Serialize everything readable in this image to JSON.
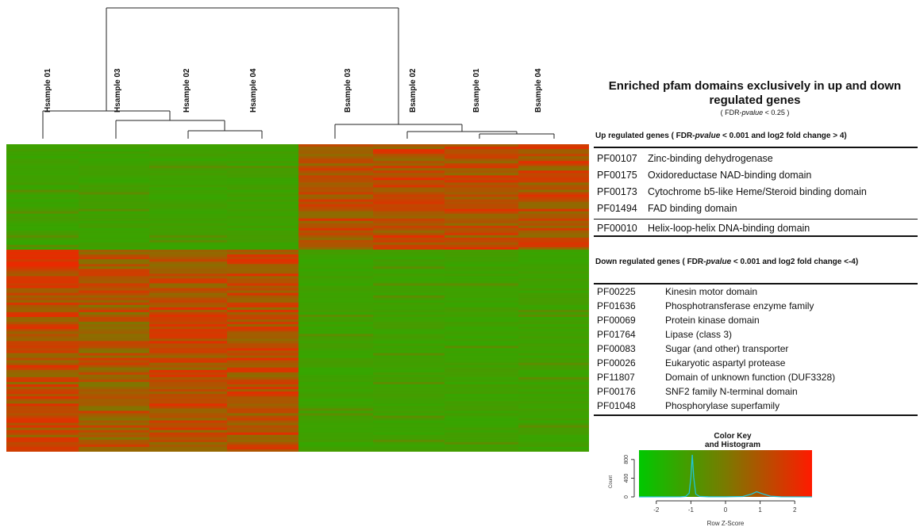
{
  "chart_data": {
    "type": "heatmap",
    "columns": [
      "Hsample 01",
      "Hsample 03",
      "Hsample 02",
      "Hsample 04",
      "Bsample 03",
      "Bsample 02",
      "Bsample 01",
      "Bsample 04"
    ],
    "row_clusters": [
      {
        "pattern": [
          -1,
          -1,
          -1,
          -1,
          1,
          1,
          1,
          1
        ]
      },
      {
        "pattern": [
          1,
          1,
          1,
          1,
          -1,
          -1,
          -1,
          -1
        ]
      }
    ],
    "color_scale": {
      "low": "#00c800",
      "mid": "#7a7a00",
      "high": "#ff1a00"
    },
    "color_key": {
      "title": "Color Key\nand Histogram",
      "xlabel": "Row Z-Score",
      "ylabel": "Count",
      "xlim": [
        -2.5,
        2.5
      ],
      "ylim": [
        0,
        1000
      ],
      "xticks": [
        "-2",
        "-1",
        "0",
        "1",
        "2"
      ],
      "yticks": [
        "0",
        "400",
        "800"
      ],
      "histogram": [
        {
          "z": -2.5,
          "count": 0
        },
        {
          "z": -1.3,
          "count": 2
        },
        {
          "z": -1.15,
          "count": 10
        },
        {
          "z": -1.05,
          "count": 80
        },
        {
          "z": -1.0,
          "count": 420
        },
        {
          "z": -0.96,
          "count": 900
        },
        {
          "z": -0.92,
          "count": 420
        },
        {
          "z": -0.86,
          "count": 60
        },
        {
          "z": -0.75,
          "count": 10
        },
        {
          "z": -0.5,
          "count": 3
        },
        {
          "z": 0.0,
          "count": 2
        },
        {
          "z": 0.5,
          "count": 8
        },
        {
          "z": 0.75,
          "count": 60
        },
        {
          "z": 0.9,
          "count": 110
        },
        {
          "z": 1.05,
          "count": 70
        },
        {
          "z": 1.3,
          "count": 15
        },
        {
          "z": 1.6,
          "count": 2
        },
        {
          "z": 2.5,
          "count": 0
        }
      ]
    }
  },
  "panel": {
    "title": "Enriched pfam domains exclusively in up and down regulated genes",
    "subtitle_pre": "( FDR-",
    "subtitle_italic": "pvalue",
    "subtitle_post": " < 0.25 )",
    "up": {
      "head_pre": "Up regulated genes ( FDR-",
      "head_italic": "pvalue",
      "head_post": " < 0.001 and log2 fold change > 4)",
      "rows": [
        {
          "code": "PF00107",
          "desc": "Zinc-binding dehydrogenase"
        },
        {
          "code": "PF00175",
          "desc": "Oxidoreductase NAD-binding domain"
        },
        {
          "code": "PF00173",
          "desc": "Cytochrome b5-like Heme/Steroid binding domain"
        },
        {
          "code": "PF01494",
          "desc": "FAD binding domain"
        },
        {
          "code": "PF00010",
          "desc": "Helix-loop-helix DNA-binding domain"
        }
      ]
    },
    "down": {
      "head_pre": "Down regulated genes ( FDR-",
      "head_italic": "pvalue",
      "head_post": " < 0.001 and log2 fold change  <-4)",
      "rows": [
        {
          "code": "PF00225",
          "desc": "Kinesin motor domain"
        },
        {
          "code": "PF01636",
          "desc": "Phosphotransferase enzyme family"
        },
        {
          "code": "PF00069",
          "desc": "Protein kinase domain"
        },
        {
          "code": "PF01764",
          "desc": "Lipase (class 3)"
        },
        {
          "code": "PF00083",
          "desc": "Sugar (and other) transporter"
        },
        {
          "code": "PF00026",
          "desc": "Eukaryotic aspartyl protease"
        },
        {
          "code": "PF11807",
          "desc": "Domain of unknown function (DUF3328)"
        },
        {
          "code": "PF00176",
          "desc": "SNF2 family N-terminal domain"
        },
        {
          "code": "PF01048",
          "desc": "Phosphorylase superfamily"
        }
      ]
    }
  }
}
